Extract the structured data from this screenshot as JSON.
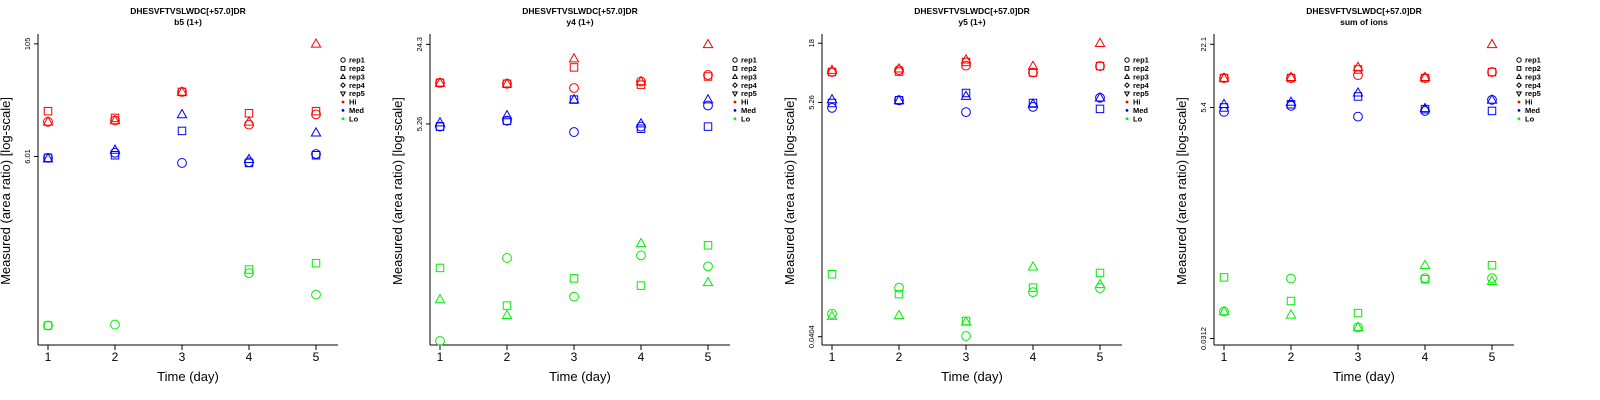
{
  "colors": {
    "Hi": "#ff0000",
    "Med": "#0000ff",
    "Lo": "#00ee00"
  },
  "shape_icons": {
    "rep1": "circle-icon",
    "rep2": "square-icon",
    "rep3": "triangle-up-icon",
    "rep4": "diamond-icon",
    "rep5": "triangle-down-icon"
  },
  "legend": [
    {
      "label": "rep1",
      "kind": "shape"
    },
    {
      "label": "rep2",
      "kind": "shape"
    },
    {
      "label": "rep3",
      "kind": "shape"
    },
    {
      "label": "rep4",
      "kind": "shape"
    },
    {
      "label": "rep5",
      "kind": "shape"
    },
    {
      "label": "Hi",
      "kind": "color"
    },
    {
      "label": "Med",
      "kind": "color"
    },
    {
      "label": "Lo",
      "kind": "color"
    }
  ],
  "chart_data": [
    {
      "type": "scatter",
      "title": "DHESVFTVSLWDC[+57.0]DR",
      "subtitle": "b5 (1+)",
      "xlabel": "Time (day)",
      "ylabel": "Measured (area ratio) [log-scale]",
      "log_scale_y": true,
      "ylim": [
        0.05,
        125
      ],
      "yticks": [
        {
          "value": 6.01,
          "label": "6.01"
        },
        {
          "value": 105,
          "label": "105"
        }
      ],
      "xticks": [
        1,
        2,
        3,
        4,
        5
      ],
      "legend_position": "right",
      "series": [
        {
          "group": "Hi",
          "rep": "rep1",
          "x": [
            1,
            2,
            3,
            4,
            5
          ],
          "y": [
            14.5,
            15,
            31,
            13.5,
            17.5
          ]
        },
        {
          "group": "Hi",
          "rep": "rep2",
          "x": [
            1,
            2,
            3,
            4,
            5
          ],
          "y": [
            19,
            16,
            31,
            18,
            19
          ]
        },
        {
          "group": "Hi",
          "rep": "rep3",
          "x": [
            1,
            2,
            3,
            4,
            5
          ],
          "y": [
            14.5,
            15,
            31,
            14.5,
            105
          ]
        },
        {
          "group": "Med",
          "rep": "rep1",
          "x": [
            1,
            2,
            3,
            4,
            5
          ],
          "y": [
            5.8,
            6.6,
            5.1,
            5.2,
            6.4
          ]
        },
        {
          "group": "Med",
          "rep": "rep2",
          "x": [
            1,
            2,
            3,
            4,
            5
          ],
          "y": [
            5.8,
            6.2,
            11.5,
            5.1,
            6.2
          ]
        },
        {
          "group": "Med",
          "rep": "rep3",
          "x": [
            1,
            2,
            3,
            4,
            5
          ],
          "y": [
            5.7,
            7.1,
            17.5,
            5.6,
            11
          ]
        },
        {
          "group": "Lo",
          "rep": "rep1",
          "x": [
            1,
            2,
            3,
            4,
            5
          ],
          "y": [
            0.082,
            0.084,
            null,
            0.31,
            0.18
          ]
        },
        {
          "group": "Lo",
          "rep": "rep2",
          "x": [
            1,
            2,
            3,
            4,
            5
          ],
          "y": [
            0.082,
            null,
            null,
            0.34,
            0.4
          ]
        }
      ]
    },
    {
      "type": "scatter",
      "title": "DHESVFTVSLWDC[+57.0]DR",
      "subtitle": "y4 (1+)",
      "xlabel": "Time (day)",
      "ylabel": "Measured (area ratio) [log-scale]",
      "log_scale_y": true,
      "ylim": [
        0.075,
        28
      ],
      "yticks": [
        {
          "value": 5.26,
          "label": "5.26"
        },
        {
          "value": 24.3,
          "label": "24.3"
        }
      ],
      "xticks": [
        1,
        2,
        3,
        4,
        5
      ],
      "legend_position": "right",
      "series": [
        {
          "group": "Hi",
          "rep": "rep1",
          "x": [
            1,
            2,
            3,
            4,
            5
          ],
          "y": [
            11.6,
            11.4,
            10.5,
            11.9,
            13.5
          ]
        },
        {
          "group": "Hi",
          "rep": "rep2",
          "x": [
            1,
            2,
            3,
            4,
            5
          ],
          "y": [
            11.6,
            11.4,
            15.6,
            11.2,
            13.1
          ]
        },
        {
          "group": "Hi",
          "rep": "rep3",
          "x": [
            1,
            2,
            3,
            4,
            5
          ],
          "y": [
            11.6,
            11.4,
            18.5,
            11.9,
            24.3
          ]
        },
        {
          "group": "Med",
          "rep": "rep1",
          "x": [
            1,
            2,
            3,
            4,
            5
          ],
          "y": [
            5.0,
            5.6,
            4.5,
            5.0,
            7.5
          ]
        },
        {
          "group": "Med",
          "rep": "rep2",
          "x": [
            1,
            2,
            3,
            4,
            5
          ],
          "y": [
            5.0,
            5.6,
            8.4,
            4.8,
            5.0
          ]
        },
        {
          "group": "Med",
          "rep": "rep3",
          "x": [
            1,
            2,
            3,
            4,
            5
          ],
          "y": [
            5.4,
            6.2,
            8.4,
            5.3,
            8.4
          ]
        },
        {
          "group": "Lo",
          "rep": "rep1",
          "x": [
            1,
            2,
            3,
            4,
            5
          ],
          "y": [
            0.081,
            0.4,
            0.19,
            0.42,
            0.34
          ]
        },
        {
          "group": "Lo",
          "rep": "rep2",
          "x": [
            1,
            2,
            3,
            4,
            5
          ],
          "y": [
            0.33,
            0.16,
            0.27,
            0.235,
            0.51
          ]
        },
        {
          "group": "Lo",
          "rep": "rep3",
          "x": [
            1,
            2,
            3,
            4,
            5
          ],
          "y": [
            0.18,
            0.133,
            null,
            0.53,
            0.25
          ]
        }
      ]
    },
    {
      "type": "scatter",
      "title": "DHESVFTVSLWDC[+57.0]DR",
      "subtitle": "y5 (1+)",
      "xlabel": "Time (day)",
      "ylabel": "Measured (area ratio) [log-scale]",
      "log_scale_y": true,
      "ylim": [
        0.034,
        20.5
      ],
      "yticks": [
        {
          "value": 0.0404,
          "label": "0.0404"
        },
        {
          "value": 5.26,
          "label": "5.26"
        },
        {
          "value": 18,
          "label": "18"
        }
      ],
      "xticks": [
        1,
        2,
        3,
        4,
        5
      ],
      "legend_position": "right",
      "series": [
        {
          "group": "Hi",
          "rep": "rep1",
          "x": [
            1,
            2,
            3,
            4,
            5
          ],
          "y": [
            9.9,
            10.3,
            11.3,
            9.8,
            11.2
          ]
        },
        {
          "group": "Hi",
          "rep": "rep2",
          "x": [
            1,
            2,
            3,
            4,
            5
          ],
          "y": [
            9.9,
            10.0,
            12.2,
            9.8,
            11.2
          ]
        },
        {
          "group": "Hi",
          "rep": "rep3",
          "x": [
            1,
            2,
            3,
            4,
            5
          ],
          "y": [
            10.3,
            10.6,
            12.8,
            11.2,
            18
          ]
        },
        {
          "group": "Med",
          "rep": "rep1",
          "x": [
            1,
            2,
            3,
            4,
            5
          ],
          "y": [
            4.7,
            5.5,
            4.3,
            4.8,
            5.8
          ]
        },
        {
          "group": "Med",
          "rep": "rep2",
          "x": [
            1,
            2,
            3,
            4,
            5
          ],
          "y": [
            5.2,
            5.5,
            6.4,
            5.2,
            4.6
          ]
        },
        {
          "group": "Med",
          "rep": "rep3",
          "x": [
            1,
            2,
            3,
            4,
            5
          ],
          "y": [
            5.6,
            5.5,
            6.0,
            5.1,
            5.8
          ]
        },
        {
          "group": "Lo",
          "rep": "rep1",
          "x": [
            1,
            2,
            3,
            4,
            5
          ],
          "y": [
            0.065,
            0.112,
            0.041,
            0.102,
            0.111
          ]
        },
        {
          "group": "Lo",
          "rep": "rep2",
          "x": [
            1,
            2,
            3,
            4,
            5
          ],
          "y": [
            0.148,
            0.098,
            0.056,
            0.112,
            0.152
          ]
        },
        {
          "group": "Lo",
          "rep": "rep3",
          "x": [
            1,
            2,
            3,
            4,
            5
          ],
          "y": [
            0.062,
            0.063,
            0.055,
            0.173,
            0.12
          ]
        }
      ]
    },
    {
      "type": "scatter",
      "title": "DHESVFTVSLWDC[+57.0]DR",
      "subtitle": "sum of ions",
      "xlabel": "Time (day)",
      "ylabel": "Measured (area ratio) [log-scale]",
      "log_scale_y": true,
      "ylim": [
        0.027,
        26
      ],
      "yticks": [
        {
          "value": 0.0312,
          "label": "0.0312"
        },
        {
          "value": 5.4,
          "label": "5.4"
        },
        {
          "value": 22.1,
          "label": "22.1"
        }
      ],
      "xticks": [
        1,
        2,
        3,
        4,
        5
      ],
      "legend_position": "right",
      "series": [
        {
          "group": "Hi",
          "rep": "rep1",
          "x": [
            1,
            2,
            3,
            4,
            5
          ],
          "y": [
            10.4,
            10.4,
            11.1,
            10.4,
            11.9
          ]
        },
        {
          "group": "Hi",
          "rep": "rep2",
          "x": [
            1,
            2,
            3,
            4,
            5
          ],
          "y": [
            10.4,
            10.4,
            12.6,
            10.4,
            11.9
          ]
        },
        {
          "group": "Hi",
          "rep": "rep3",
          "x": [
            1,
            2,
            3,
            4,
            5
          ],
          "y": [
            10.4,
            10.6,
            13.3,
            10.6,
            22.1
          ]
        },
        {
          "group": "Med",
          "rep": "rep1",
          "x": [
            1,
            2,
            3,
            4,
            5
          ],
          "y": [
            4.9,
            5.6,
            4.4,
            5.0,
            6.4
          ]
        },
        {
          "group": "Med",
          "rep": "rep2",
          "x": [
            1,
            2,
            3,
            4,
            5
          ],
          "y": [
            5.4,
            5.8,
            6.9,
            5.2,
            5.0
          ]
        },
        {
          "group": "Med",
          "rep": "rep3",
          "x": [
            1,
            2,
            3,
            4,
            5
          ],
          "y": [
            5.8,
            6.1,
            7.5,
            5.3,
            6.4
          ]
        },
        {
          "group": "Lo",
          "rep": "rep1",
          "x": [
            1,
            2,
            3,
            4,
            5
          ],
          "y": [
            0.057,
            0.119,
            0.04,
            0.12,
            0.12
          ]
        },
        {
          "group": "Lo",
          "rep": "rep2",
          "x": [
            1,
            2,
            3,
            4,
            5
          ],
          "y": [
            0.122,
            0.072,
            0.055,
            0.117,
            0.16
          ]
        },
        {
          "group": "Lo",
          "rep": "rep3",
          "x": [
            1,
            2,
            3,
            4,
            5
          ],
          "y": [
            0.057,
            0.053,
            0.04,
            0.16,
            0.112
          ]
        }
      ]
    }
  ]
}
